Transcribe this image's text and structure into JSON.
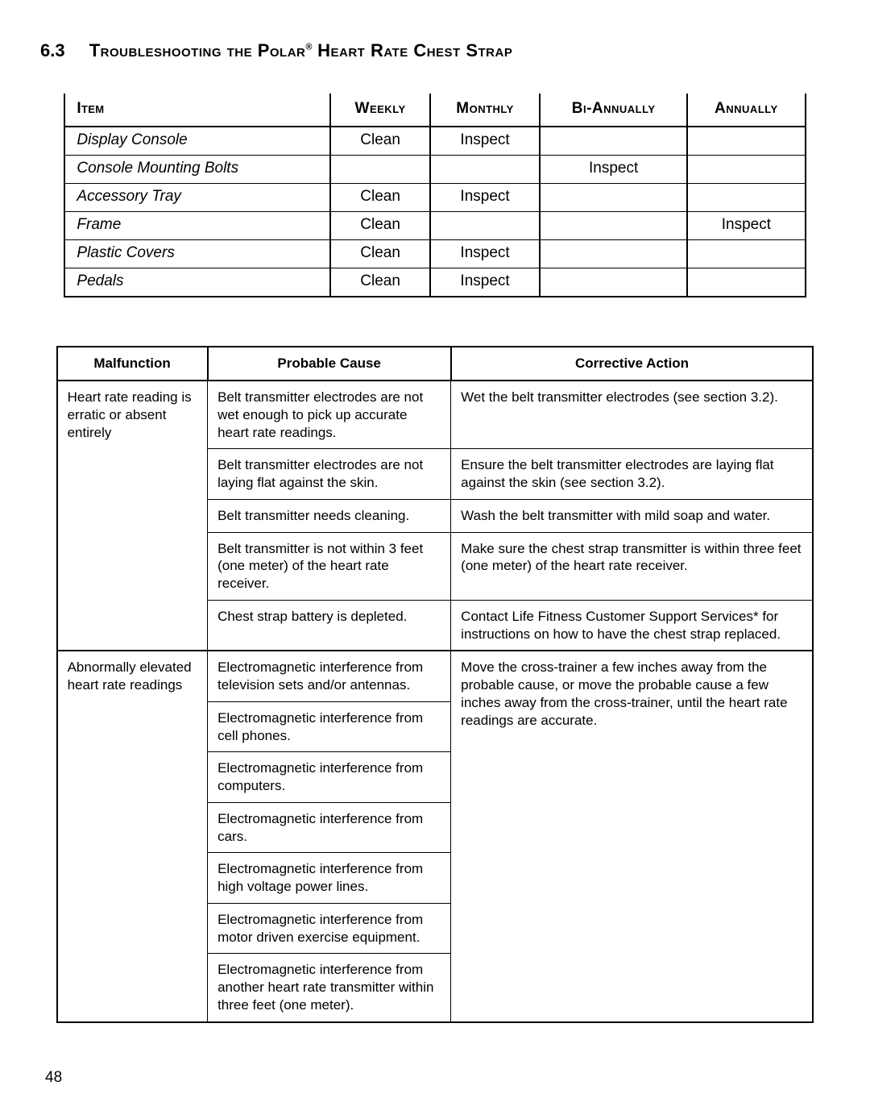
{
  "section": {
    "number": "6.3",
    "title_pre": "Troubleshooting the Polar",
    "title_reg": "®",
    "title_post": " Heart Rate Chest Strap"
  },
  "maint_table": {
    "headers": {
      "item": "Item",
      "weekly": "Weekly",
      "monthly": "Monthly",
      "biannually": "Bi-Annually",
      "annually": "Annually"
    },
    "rows": [
      {
        "item": "Display Console",
        "weekly": "Clean",
        "monthly": "Inspect",
        "biannually": "",
        "annually": ""
      },
      {
        "item": "Console Mounting Bolts",
        "weekly": "",
        "monthly": "",
        "biannually": "Inspect",
        "annually": ""
      },
      {
        "item": "Accessory Tray",
        "weekly": "Clean",
        "monthly": "Inspect",
        "biannually": "",
        "annually": ""
      },
      {
        "item": "Frame",
        "weekly": "Clean",
        "monthly": "",
        "biannually": "",
        "annually": "Inspect"
      },
      {
        "item": "Plastic Covers",
        "weekly": "Clean",
        "monthly": "Inspect",
        "biannually": "",
        "annually": ""
      },
      {
        "item": "Pedals",
        "weekly": "Clean",
        "monthly": "Inspect",
        "biannually": "",
        "annually": ""
      }
    ]
  },
  "trouble_table": {
    "headers": {
      "malfunction": "Malfunction",
      "cause": "Probable Cause",
      "action": "Corrective Action"
    },
    "group1": {
      "malfunction": "Heart rate reading is erratic or absent entirely",
      "rows": [
        {
          "cause": "Belt transmitter electrodes are not wet enough to pick up accurate heart rate readings.",
          "action": "Wet the belt transmitter electrodes (see section 3.2)."
        },
        {
          "cause": "Belt transmitter electrodes are not laying flat against the skin.",
          "action": "Ensure the belt transmitter electrodes are laying flat against the skin (see section 3.2)."
        },
        {
          "cause": "Belt transmitter needs cleaning.",
          "action": "Wash the belt transmitter with mild soap and water."
        },
        {
          "cause": "Belt transmitter is not within 3 feet (one meter) of the heart rate receiver.",
          "action": "Make sure the chest strap transmitter is within three feet (one meter) of the heart rate receiver."
        },
        {
          "cause": "Chest strap battery is depleted.",
          "action": "Contact Life Fitness Customer Support Services* for instructions on how to have the chest strap replaced."
        }
      ]
    },
    "group2": {
      "malfunction": "Abnormally elevated heart rate readings",
      "action": "Move the cross-trainer a few inches away from the probable cause, or move the probable cause a few inches away from the cross-trainer, until the heart rate readings are accurate.",
      "causes": [
        "Electromagnetic interference from television sets and/or antennas.",
        "Electromagnetic interference from cell phones.",
        "Electromagnetic interference from computers.",
        "Electromagnetic interference from cars.",
        "Electromagnetic interference from high voltage power lines.",
        "Electromagnetic interference from motor driven exercise equipment.",
        "Electromagnetic interference from another heart rate transmitter within three feet (one meter)."
      ]
    }
  },
  "page_number": "48"
}
